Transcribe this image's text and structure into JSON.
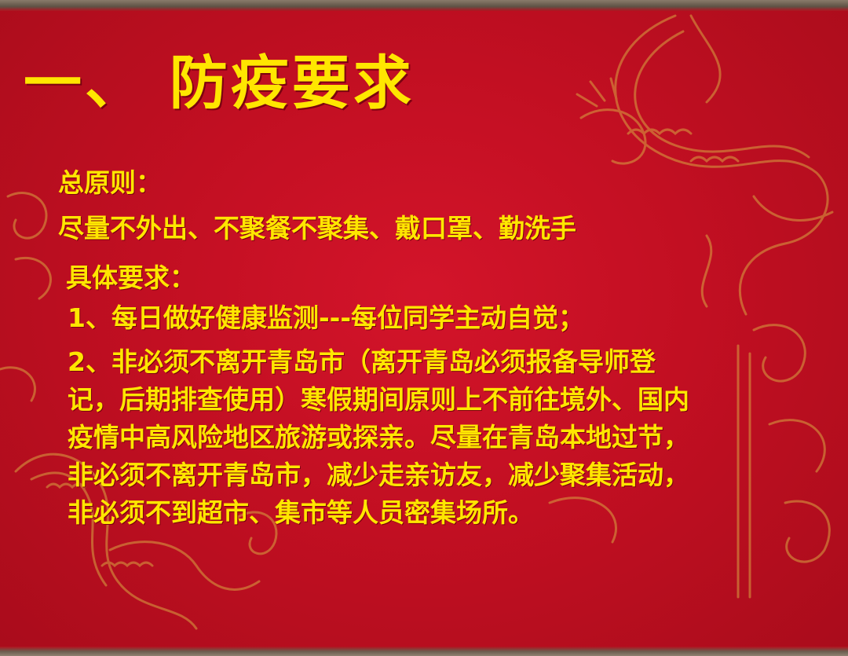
{
  "slide": {
    "title": "一、 防疫要求",
    "general_principle": {
      "heading": "总原则：",
      "text": "尽量不外出、不聚餐不聚集、戴口罩、勤洗手"
    },
    "specific_requirements": {
      "heading": "具体要求：",
      "item1": "1、每日做好健康监测---每位同学主动自觉；",
      "item2_lines": [
        "2、非必须不离开青岛市（离开青岛必须报备导师登",
        "记，后期排查使用）寒假期间原则上不前往境外、国内",
        "疫情中高风险地区旅游或探亲。尽量在青岛本地过节，",
        "非必须不离开青岛市，减少走亲访友，减少聚集活动，",
        "非必须不到超市、集市等人员密集场所。"
      ]
    }
  },
  "colors": {
    "background": "#c20f22",
    "text": "#ffe600",
    "ornament": "#d9a441"
  },
  "icons": [
    "dragon-ornament",
    "cloud-scroll-ornament"
  ]
}
